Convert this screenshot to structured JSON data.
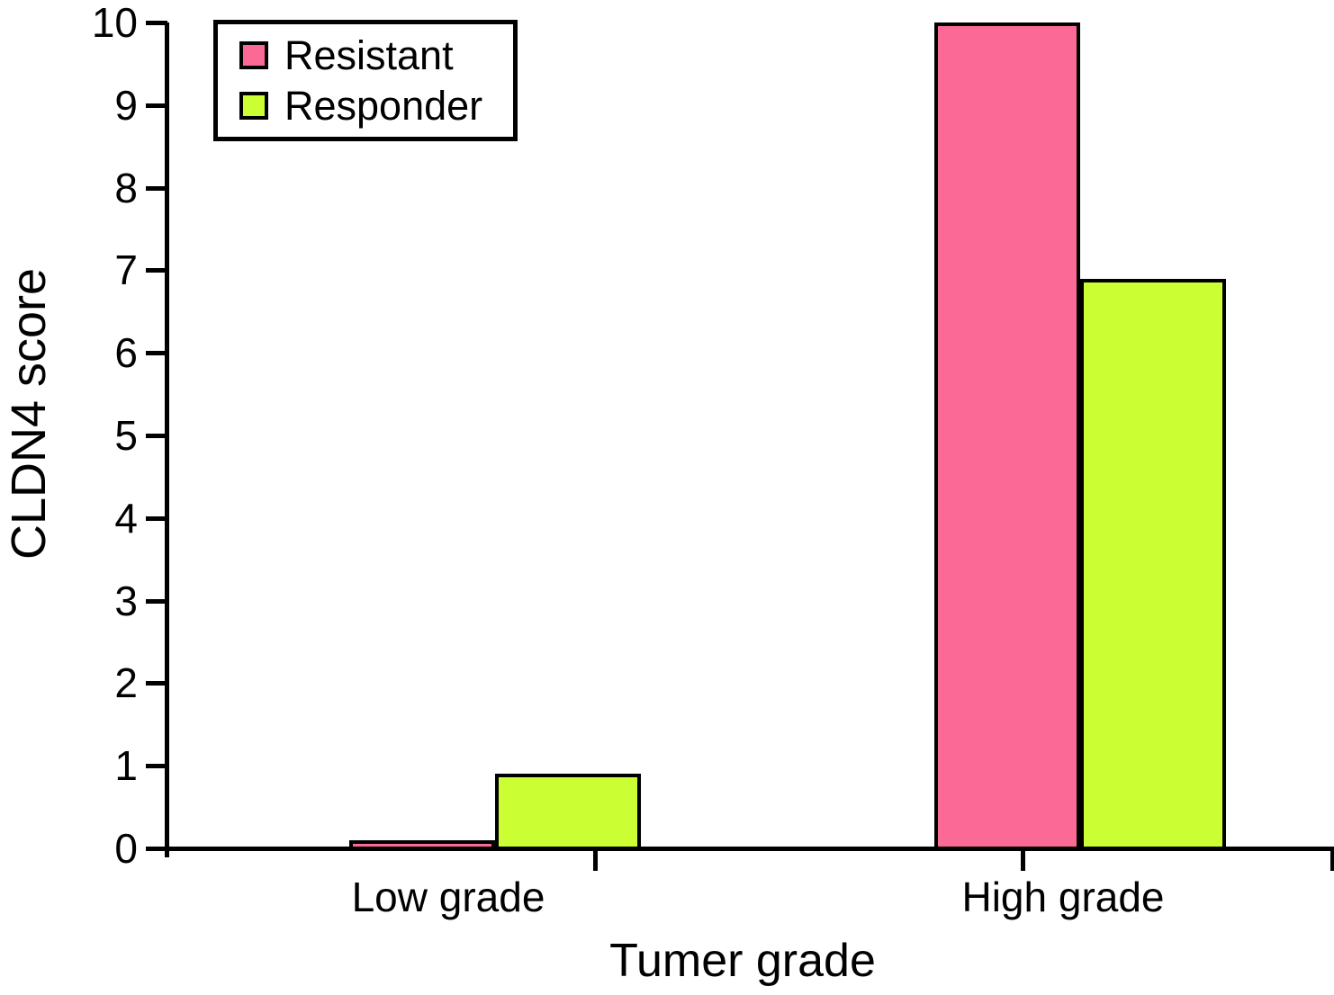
{
  "chart_data": {
    "type": "bar",
    "title": "",
    "xlabel": "Tumer grade",
    "ylabel": "CLDN4 score",
    "categories": [
      "Low grade",
      "High grade"
    ],
    "series": [
      {
        "name": "Resistant",
        "color": "#FB6A96",
        "values": [
          0.1,
          10.0
        ]
      },
      {
        "name": "Responder",
        "color": "#CCFF33",
        "values": [
          0.9,
          6.9
        ]
      }
    ],
    "ylim": [
      0,
      10
    ],
    "ytick_step": 1,
    "ytick_labels": [
      "0",
      "1",
      "2",
      "3",
      "4",
      "5",
      "6",
      "7",
      "8",
      "9",
      "10"
    ],
    "grid": false,
    "legend_position": "top-left",
    "bar_border_color": "#000000",
    "axis_color": "#000000",
    "background_color": "#ffffff"
  }
}
